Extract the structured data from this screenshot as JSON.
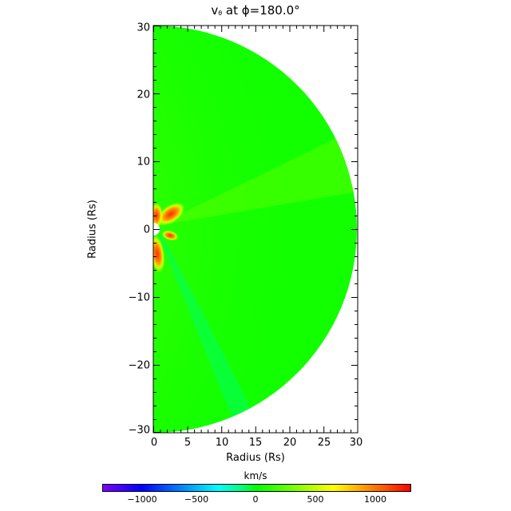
{
  "title": {
    "variable": "v",
    "subscript": "θ",
    "suffix": " at ϕ=180.0°"
  },
  "chart_data": {
    "type": "heatmap",
    "title": "v_θ at ϕ=180.0°",
    "xlabel": "Radius (Rs)",
    "ylabel": "Radius (Rs)",
    "xlim": [
      0,
      30
    ],
    "ylim": [
      -30,
      30
    ],
    "xticks": [
      0,
      5,
      10,
      15,
      20,
      25,
      30
    ],
    "yticks": [
      -30,
      -20,
      -10,
      0,
      10,
      20,
      30
    ],
    "domain_shape": "half-disk (meridional slice) of radius 30 Rs centered at origin, inner hole ~1 Rs",
    "colorbar": {
      "label": "km/s",
      "range": [
        -1280,
        1280
      ],
      "ticks": [
        -1000,
        -500,
        0,
        500,
        1000
      ],
      "colormap": "rainbow (violet-blue-cyan-green-yellow-red)"
    },
    "features": [
      {
        "description": "background field mostly near 0 to +200 km/s (green)"
      },
      {
        "description": "positive lobe above equator near (2,2) Rs, ~1000-1200 km/s (red/orange)"
      },
      {
        "description": "positive lobe along upper axis near (0.5,1.5) Rs, ~1000 km/s"
      },
      {
        "description": "positive lobe below axis near (0.5,-3.5) Rs, ~1100 km/s"
      },
      {
        "description": "smaller lobe near (2.5,-1) Rs, ~900 km/s"
      },
      {
        "description": "yellowish-green streamer band extending outward from upper-left lobe, ~300-400 km/s"
      },
      {
        "description": "cyan-green band (~ -100 km/s) extending from near origin toward (8,-25) Rs"
      }
    ]
  },
  "axes": {
    "x": {
      "label": "Radius (Rs)",
      "ticks": [
        "0",
        "5",
        "10",
        "15",
        "20",
        "25",
        "30"
      ]
    },
    "y": {
      "label": "Radius (Rs)",
      "ticks": [
        "30",
        "20",
        "10",
        "0",
        "−10",
        "−20",
        "−30"
      ]
    }
  },
  "colorbar": {
    "label": "km/s",
    "ticks": [
      "−1000",
      "−500",
      "0",
      "500",
      "1000"
    ]
  }
}
